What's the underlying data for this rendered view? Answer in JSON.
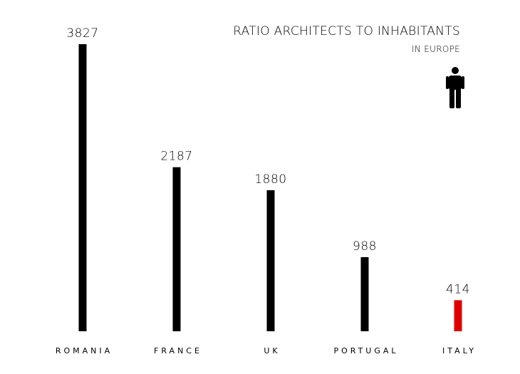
{
  "chart_data": {
    "type": "bar",
    "title": "RATIO ARCHITECTS TO INHABITANTS",
    "subtitle": "IN EUROPE",
    "categories": [
      "ROMANIA",
      "FRANCE",
      "UK",
      "PORTUGAL",
      "ITALY"
    ],
    "values": [
      3827,
      2187,
      1880,
      988,
      414
    ],
    "value_labels": [
      "3827",
      "2187",
      "1880",
      "988",
      "414"
    ],
    "bar_colors": [
      "#000000",
      "#000000",
      "#000000",
      "#000000",
      "#e00000"
    ],
    "ylim": [
      0,
      3827
    ],
    "grid": false,
    "icon": "person-icon"
  }
}
